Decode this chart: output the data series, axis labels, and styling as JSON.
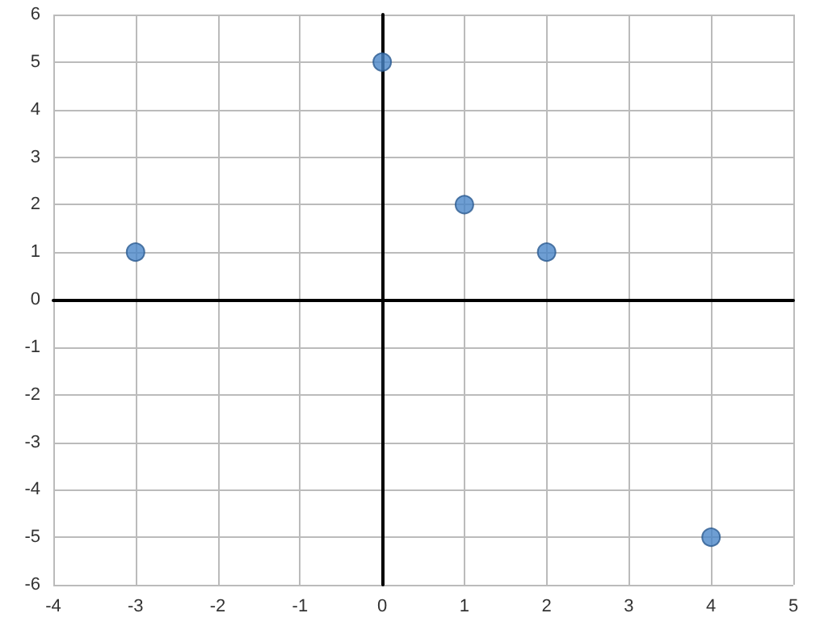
{
  "chart_data": {
    "type": "scatter",
    "x": [
      -3,
      0,
      1,
      2,
      4
    ],
    "values": [
      1,
      5,
      2,
      1,
      -5
    ],
    "color": "#4a86c8",
    "marker": "circle",
    "xlim": [
      -4,
      5
    ],
    "xticks": [
      -4,
      -3,
      -2,
      -1,
      0,
      1,
      2,
      3,
      4,
      5
    ],
    "ylim": [
      -6,
      6
    ],
    "yticks": [
      -6,
      -5,
      -4,
      -3,
      -2,
      -1,
      0,
      1,
      2,
      3,
      4,
      5,
      6
    ],
    "grid": true
  }
}
